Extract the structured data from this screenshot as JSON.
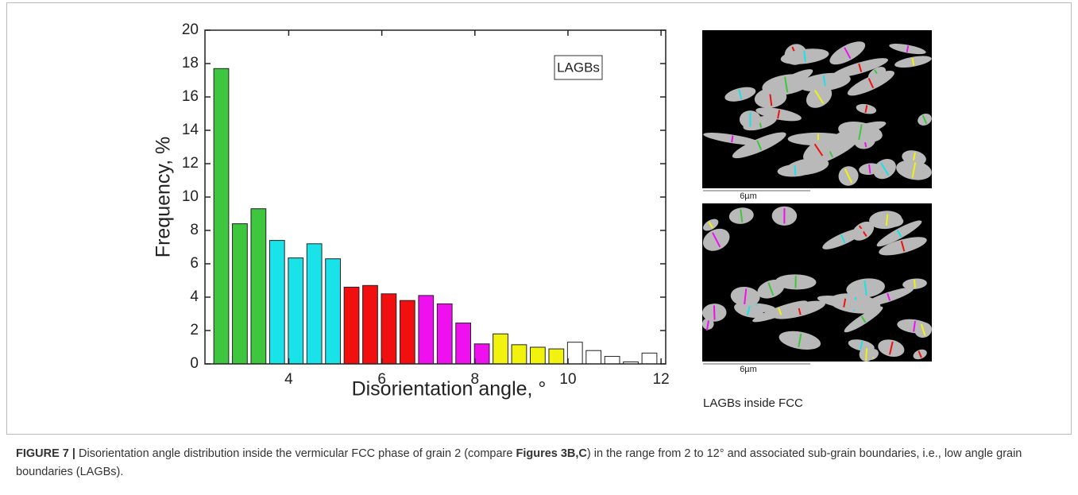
{
  "chart_data": {
    "type": "histogram",
    "x_label": "Disorientation angle, °",
    "y_label": "Frequency, %",
    "legend_text": "LAGBs",
    "bins": [
      2.35,
      2.75,
      3.15,
      3.55,
      3.95,
      4.35,
      4.75,
      5.15,
      5.55,
      5.95,
      6.35,
      6.75,
      7.15,
      7.55,
      7.95,
      8.35,
      8.75,
      9.15,
      9.55,
      9.95,
      10.35,
      10.75,
      11.15,
      11.55,
      11.95
    ],
    "values": [
      17.7,
      8.4,
      9.3,
      7.4,
      6.35,
      7.2,
      6.3,
      4.6,
      4.7,
      4.2,
      3.8,
      4.1,
      3.6,
      2.45,
      1.2,
      1.8,
      1.15,
      1.0,
      0.9,
      1.3,
      0.8,
      0.45,
      0.12,
      0.65
    ],
    "colors": [
      "#3ec63e",
      "#3ec63e",
      "#3ec63e",
      "#19e3e8",
      "#19e3e8",
      "#19e3e8",
      "#19e3e8",
      "#f20f0f",
      "#f20f0f",
      "#f20f0f",
      "#f20f0f",
      "#ee10ee",
      "#ee10ee",
      "#ee10ee",
      "#ee10ee",
      "#f2f20f",
      "#f2f20f",
      "#f2f20f",
      "#f2f20f",
      "#ffffff",
      "#ffffff",
      "#ffffff",
      "#ffffff",
      "#ffffff"
    ],
    "xlim": [
      2.2,
      12.1
    ],
    "xticks": [
      4,
      6,
      8,
      10,
      12
    ],
    "ylim": [
      0,
      20
    ],
    "yticks": [
      0,
      2,
      4,
      6,
      8,
      10,
      12,
      14,
      16,
      18,
      20
    ],
    "grid": false
  },
  "images": {
    "scale_bars": [
      "6µm",
      "6µm"
    ],
    "label": "LAGBs inside FCC"
  },
  "caption": {
    "label": "FIGURE 7 |",
    "text_1": "Disorientation angle distribution inside the vermicular FCC phase of grain 2 (compare",
    "ref": "Figures 3B,C",
    "text_2": ") in the range from 2 to 12° and associated sub-grain boundaries, i.e., low angle grain boundaries (LAGBs)."
  }
}
